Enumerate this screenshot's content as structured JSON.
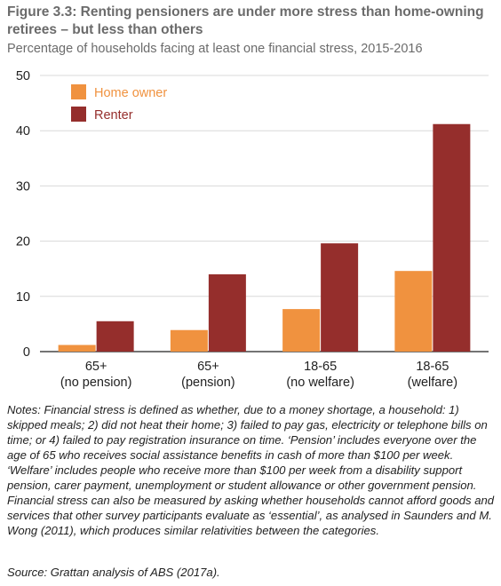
{
  "chart_data": {
    "type": "bar",
    "title": "Figure 3.3: Renting pensioners are under more stress than home-owning retirees – but less than others",
    "subtitle": "Percentage of households facing at least one financial stress, 2015-2016",
    "categories": [
      [
        "65+",
        "(no pension)"
      ],
      [
        "65+",
        "(pension)"
      ],
      [
        "18-65",
        "(no welfare)"
      ],
      [
        "18-65",
        "(welfare)"
      ]
    ],
    "series": [
      {
        "name": "Home owner",
        "color": "#f0923f",
        "values": [
          1.2,
          3.9,
          7.7,
          14.6
        ]
      },
      {
        "name": "Renter",
        "color": "#952e2c",
        "values": [
          5.5,
          14.0,
          19.6,
          41.2
        ]
      }
    ],
    "yticks": [
      0,
      10,
      20,
      30,
      40,
      50
    ],
    "ylim": [
      0,
      50
    ],
    "grid": true,
    "legend_position": "top-left"
  },
  "notes": "Notes: Financial stress is defined as whether, due to a money shortage, a household: 1) skipped meals; 2) did not heat their home; 3) failed to pay gas, electricity or telephone bills on time; or 4) failed to pay registration insurance on time. ‘Pension’ includes everyone over the age of 65 who receives social assistance benefits in cash of more than $100 per week. ‘Welfare’ includes people who receive more than $100 per week from a disability support pension, carer payment, unemployment or student allowance or other government pension. Financial stress can also be measured by asking whether households cannot afford goods and services that other survey participants evaluate as ‘essential’, as analysed in Saunders and M. Wong (2011), which produces similar relativities between the categories.",
  "source": "Source: Grattan analysis of ABS (2017a)."
}
